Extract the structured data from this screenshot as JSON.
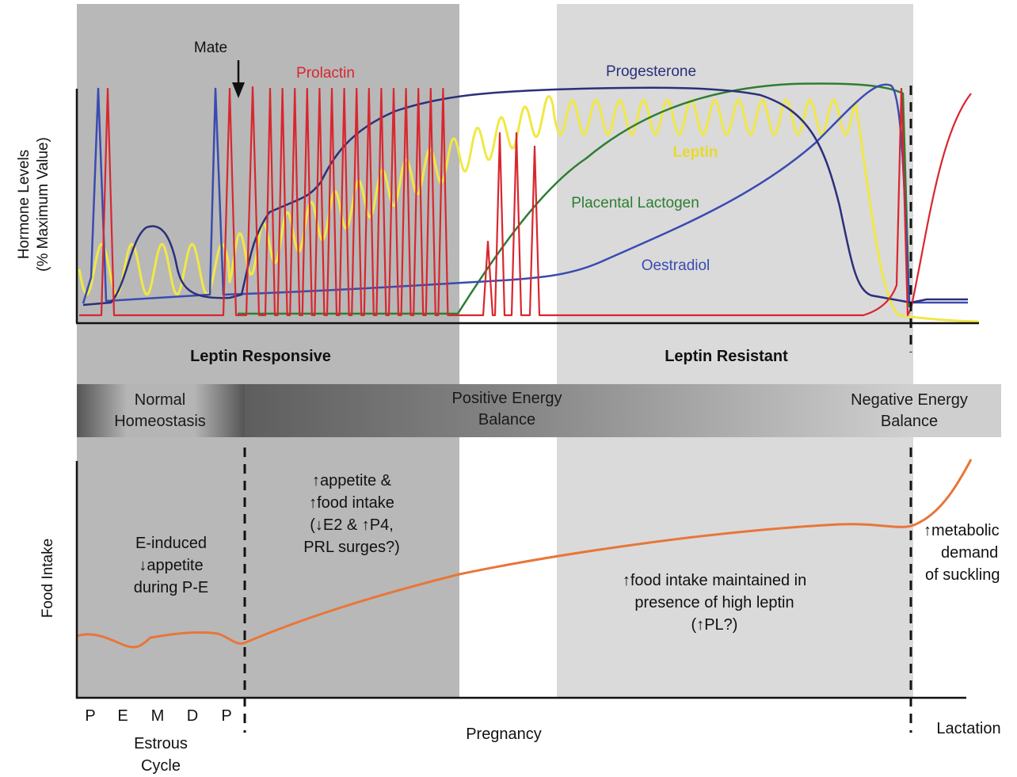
{
  "colors": {
    "prolactin": "#d9262e",
    "progesterone": "#2b2f7a",
    "leptin": "#f0e845",
    "placental_lactogen": "#2e7d32",
    "oestradiol": "#3a4bb0",
    "food_intake": "#e8763a",
    "shade_dark": "#b3b3b3",
    "shade_light": "#d9d9d9"
  },
  "top_panel": {
    "y_label_line1": "Hormone Levels",
    "y_label_line2": "(% Maximum Value)",
    "mate_label": "Mate",
    "hormones": {
      "prolactin": "Prolactin",
      "progesterone": "Progesterone",
      "leptin": "Leptin",
      "placental_lactogen": "Placental Lactogen",
      "oestradiol": "Oestradiol"
    }
  },
  "phases": {
    "leptin_responsive": "Leptin Responsive",
    "leptin_resistant": "Leptin Resistant"
  },
  "energy_band": {
    "normal_line1": "Normal",
    "normal_line2": "Homeostasis",
    "positive_line1": "Positive Energy",
    "positive_line2": "Balance",
    "negative_line1": "Negative Energy",
    "negative_line2": "Balance"
  },
  "bottom_panel": {
    "y_label": "Food Intake",
    "e_induced": [
      "E-induced",
      "↓appetite",
      "during P-E"
    ],
    "appetite": [
      "↑appetite &",
      "↑food intake",
      "(↓E2 & ↑P4,",
      "PRL surges?)"
    ],
    "maintained": [
      "↑food intake maintained in",
      "presence of high leptin",
      "(↑PL?)"
    ],
    "metabolic": [
      "↑metabolic",
      "demand",
      "of suckling"
    ]
  },
  "x_axis": {
    "estrous_ticks": [
      "P",
      "E",
      "M",
      "D",
      "P"
    ],
    "estrous_line1": "Estrous",
    "estrous_line2": "Cycle",
    "pregnancy": "Pregnancy",
    "lactation": "Lactation"
  }
}
